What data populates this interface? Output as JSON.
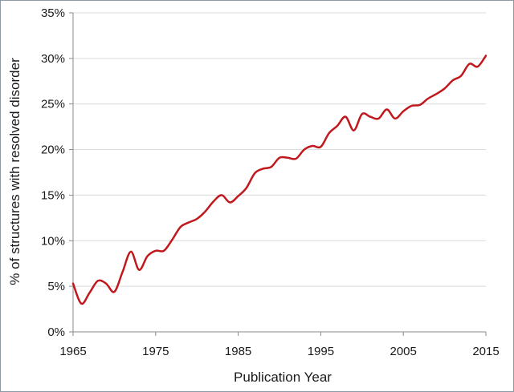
{
  "chart_data": {
    "type": "line",
    "title": "",
    "xlabel": "Publication Year",
    "ylabel": "% of structures with resolved disorder",
    "xlim": [
      1965,
      2015
    ],
    "ylim": [
      0,
      35
    ],
    "x_ticks": [
      "1965",
      "1975",
      "1985",
      "1995",
      "2005",
      "2015"
    ],
    "y_ticks": [
      "0%",
      "5%",
      "10%",
      "15%",
      "20%",
      "25%",
      "30%",
      "35%"
    ],
    "grid": "horizontal",
    "legend": "none",
    "line_color": "#c0181d",
    "series": [
      {
        "x": [
          1965,
          1966,
          1967,
          1968,
          1969,
          1970,
          1971,
          1972,
          1973,
          1974,
          1975,
          1976,
          1977,
          1978,
          1979,
          1980,
          1981,
          1982,
          1983,
          1984,
          1985,
          1986,
          1987,
          1988,
          1989,
          1990,
          1991,
          1992,
          1993,
          1994,
          1995,
          1996,
          1997,
          1998,
          1999,
          2000,
          2001,
          2002,
          2003,
          2004,
          2005,
          2006,
          2007,
          2008,
          2009,
          2010,
          2011,
          2012,
          2013,
          2014,
          2015
        ],
        "values": [
          5.3,
          3.1,
          4.3,
          5.6,
          5.3,
          4.4,
          6.6,
          8.8,
          6.8,
          8.3,
          8.9,
          8.9,
          10.1,
          11.5,
          12.0,
          12.4,
          13.2,
          14.3,
          15.0,
          14.2,
          14.9,
          15.8,
          17.4,
          17.9,
          18.1,
          19.1,
          19.1,
          19.0,
          20.0,
          20.4,
          20.3,
          21.8,
          22.6,
          23.6,
          22.1,
          23.9,
          23.6,
          23.4,
          24.4,
          23.4,
          24.2,
          24.8,
          24.9,
          25.6,
          26.1,
          26.7,
          27.6,
          28.1,
          29.4,
          29.1,
          30.3
        ]
      }
    ]
  }
}
